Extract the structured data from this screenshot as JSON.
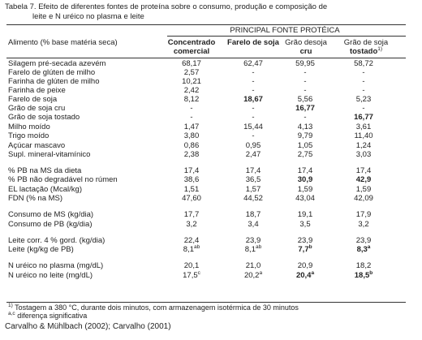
{
  "caption": {
    "line1": "Tabela 7. Efeito de diferentes fontes de proteína sobre o consumo, produção e composição de",
    "line2": "leite e N   uréico no plasma e leite"
  },
  "header": {
    "group": "PRINCIPAL FONTE PROTÉICA",
    "row_label": "Alimento (% base matéria seca)",
    "col0_a": "Concentrado",
    "col0_b": "comercial",
    "col1_a": "Farelo de soja",
    "col2_a": "Grão desoja",
    "col2_b": "cru",
    "col3_a": "Grão de soja",
    "col3_b": "tostado",
    "col3_sup": "1)"
  },
  "rows": [
    {
      "label": "Silagem pré-secada azevém",
      "v": [
        "68,17",
        "62,47",
        "59,95",
        "58,72"
      ]
    },
    {
      "label": "Farelo de glúten de milho",
      "v": [
        "2,57",
        "-",
        "-",
        "-"
      ]
    },
    {
      "label": "Farinha de glúten de milho",
      "v": [
        "10,21",
        "-",
        "-",
        "-"
      ]
    },
    {
      "label": "Farinha de peixe",
      "v": [
        "2,42",
        "-",
        "-",
        "-"
      ]
    },
    {
      "label": "Farelo de soja",
      "v": [
        "8,12",
        "18,67",
        "5,56",
        "5,23"
      ]
    },
    {
      "label": "Grão de soja cru",
      "v": [
        "-",
        "-",
        "16,77",
        "-"
      ]
    },
    {
      "label": "Grão de soja tostado",
      "v": [
        "-",
        "-",
        "-",
        "16,77"
      ]
    },
    {
      "label": "Milho moído",
      "v": [
        "1,47",
        "15,44",
        "4,13",
        "3,61"
      ]
    },
    {
      "label": "Trigo moído",
      "v": [
        "3,80",
        "-",
        "9,79",
        "11,40"
      ]
    },
    {
      "label": "Açúcar mascavo",
      "v": [
        "0,86",
        "0,95",
        "1,05",
        "1,24"
      ]
    },
    {
      "label": "Supl. mineral-vitamínico",
      "v": [
        "2,38",
        "2,47",
        "2,75",
        "3,03"
      ]
    },
    {
      "label": "% PB na MS da dieta",
      "v": [
        "17,4",
        "17,4",
        "17,4",
        "17,4"
      ]
    },
    {
      "label": "% PB não degradável no rúmen",
      "v": [
        "38,6",
        "36,5",
        "30,9",
        "42,9"
      ]
    },
    {
      "label": "EL lactação (Mcal/kg)",
      "v": [
        "1,51",
        "1,57",
        "1,59",
        "1,59"
      ]
    },
    {
      "label": "FDN (% na MS)",
      "v": [
        "47,60",
        "44,52",
        "43,04",
        "42,09"
      ]
    },
    {
      "label": "Consumo de MS (kg/dia)",
      "v": [
        "17,7",
        "18,7",
        "19,1",
        "17,9"
      ]
    },
    {
      "label": "Consumo de PB (kg/dia)",
      "v": [
        "3,2",
        "3,4",
        "3,5",
        "3,2"
      ]
    },
    {
      "label": "Leite corr. 4 % gord. (kg/dia)",
      "v": [
        "22,4",
        "23,9",
        "23,9",
        "23,9"
      ]
    },
    {
      "label": "Leite (kg/kg de PB)",
      "v": [
        "8,1",
        "8,1",
        "7,7",
        "8,3"
      ],
      "sup": [
        "ab",
        "ab",
        "b",
        "a"
      ]
    },
    {
      "label": "N uréico no plasma (mg/dL)",
      "v": [
        "20,1",
        "21,0",
        "20,9",
        "18,2"
      ]
    },
    {
      "label": "N uréico no leite (mg/dL)",
      "v": [
        "17,5",
        "20,2",
        "20,4",
        "18,5"
      ],
      "sup": [
        "c",
        "a",
        "a",
        "b"
      ]
    }
  ],
  "footnotes": {
    "fn1_mark": "1)",
    "fn1": "Tostagem a 380 °C, durante dois minutos, com armazenagem isotérmica de 30 minutos",
    "fn2_mark": "a,c",
    "fn2": "diferença significativa"
  },
  "source": "Carvalho & Mühlbach (2002); Carvalho (2001)"
}
